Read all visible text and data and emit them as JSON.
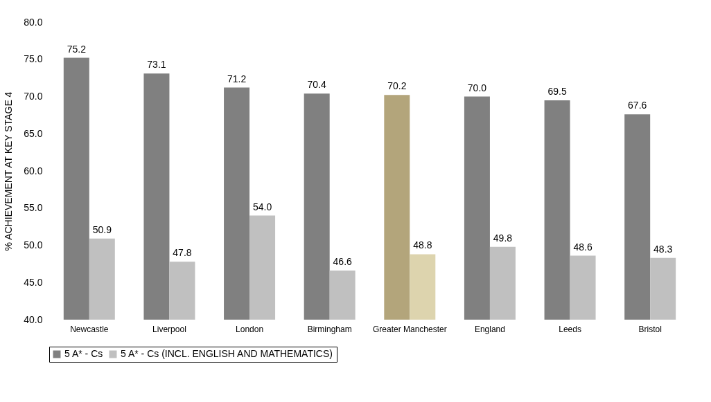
{
  "chart_data": {
    "type": "bar",
    "ylabel": "% ACHIEVEMENT AT KEY STAGE 4",
    "categories": [
      "Newcastle",
      "Liverpool",
      "London",
      "Birmingham",
      "Greater Manchester",
      "England",
      "Leeds",
      "Bristol"
    ],
    "series": [
      {
        "name": "5 A* - Cs",
        "color": "#808080",
        "colors": [
          "#808080",
          "#808080",
          "#808080",
          "#808080",
          "#b3a57b",
          "#808080",
          "#808080",
          "#808080"
        ],
        "values": [
          75.2,
          73.1,
          71.2,
          70.4,
          70.2,
          70.0,
          69.5,
          67.6
        ],
        "value_labels": [
          "75.2",
          "73.1",
          "71.2",
          "70.4",
          "70.2",
          "70.0",
          "69.5",
          "67.6"
        ]
      },
      {
        "name": "5 A* - Cs (INCL. ENGLISH AND MATHEMATICS)",
        "color": "#c0c0c0",
        "colors": [
          "#c0c0c0",
          "#c0c0c0",
          "#c0c0c0",
          "#c0c0c0",
          "#ddd4ae",
          "#c0c0c0",
          "#c0c0c0",
          "#c0c0c0"
        ],
        "values": [
          50.9,
          47.8,
          54.0,
          46.6,
          48.8,
          49.8,
          48.6,
          48.3
        ],
        "value_labels": [
          "50.9",
          "47.8",
          "54.0",
          "46.6",
          "48.8",
          "49.8",
          "48.6",
          "48.3"
        ]
      }
    ],
    "ylim": [
      40,
      80
    ],
    "yticks": [
      {
        "value": 40,
        "label": "40.0"
      },
      {
        "value": 45,
        "label": "45.0"
      },
      {
        "value": 50,
        "label": "50.0"
      },
      {
        "value": 55,
        "label": "55.0"
      },
      {
        "value": 60,
        "label": "60.0"
      },
      {
        "value": 65,
        "label": "65.0"
      },
      {
        "value": 70,
        "label": "70.0"
      },
      {
        "value": 75,
        "label": "75.0"
      },
      {
        "value": 80,
        "label": "80.0"
      }
    ],
    "grid": false,
    "legend": "bottom"
  }
}
